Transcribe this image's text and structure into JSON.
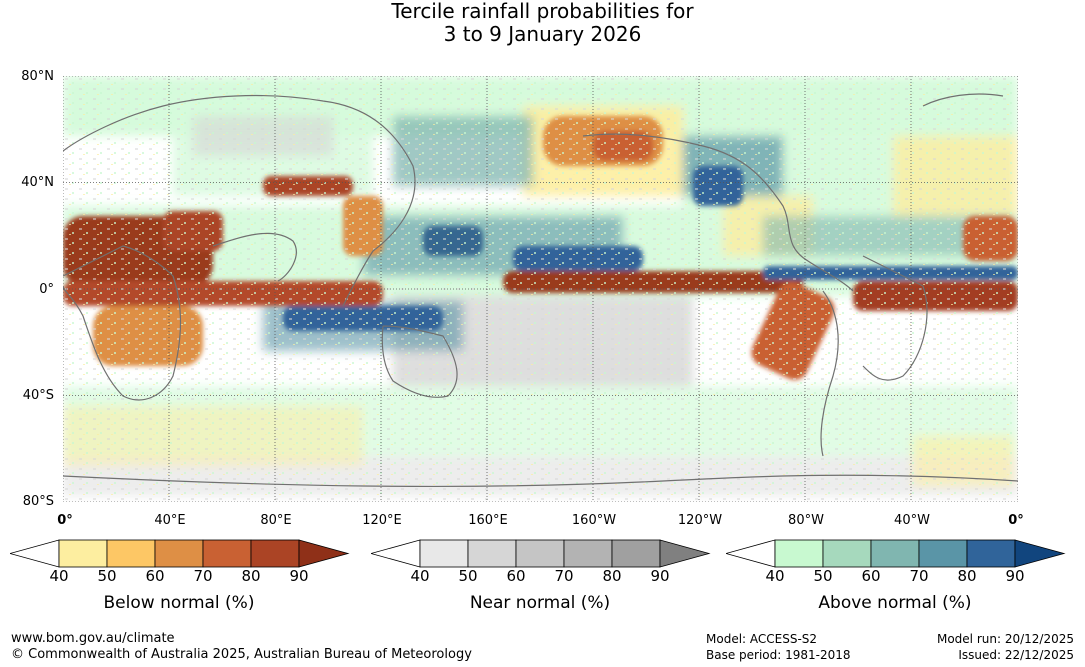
{
  "title": {
    "line1": "Tercile rainfall probabilities for",
    "line2": "3 to 9 January 2026"
  },
  "map": {
    "lat_labels": [
      "80°N",
      "40°N",
      "0°",
      "40°S",
      "80°S"
    ],
    "lon_labels": [
      "0°",
      "40°E",
      "80°E",
      "120°E",
      "160°E",
      "160°W",
      "120°W",
      "80°W",
      "40°W",
      "0°"
    ],
    "gridlines": "dotted",
    "coastline_color": "#707070"
  },
  "legends": [
    {
      "name": "Below normal (%)",
      "ticks": [
        "40",
        "50",
        "60",
        "70",
        "80",
        "90"
      ],
      "colors": [
        "#ffffff",
        "#fdeea0",
        "#fdc765",
        "#de8f45",
        "#c96133",
        "#ab4425",
        "#8f3018"
      ]
    },
    {
      "name": "Near normal (%)",
      "ticks": [
        "40",
        "50",
        "60",
        "70",
        "80",
        "90"
      ],
      "colors": [
        "#ffffff",
        "#e8e8e8",
        "#d6d6d6",
        "#c5c5c5",
        "#b3b3b3",
        "#a0a0a0",
        "#808080"
      ]
    },
    {
      "name": "Above normal (%)",
      "ticks": [
        "40",
        "50",
        "60",
        "70",
        "80",
        "90"
      ],
      "colors": [
        "#ffffff",
        "#c8f9d0",
        "#a6d9bd",
        "#80b6b0",
        "#5a95a7",
        "#30649a",
        "#11457e"
      ]
    }
  ],
  "footer": {
    "website": "www.bom.gov.au/climate",
    "copyright": "© Commonwealth of Australia 2025, Australian Bureau of Meteorology",
    "model": "Model: ACCESS-S2",
    "base_period": "Base period: 1981-2018",
    "model_run": "Model run: 20/12/2025",
    "issued": "Issued: 22/12/2025"
  }
}
